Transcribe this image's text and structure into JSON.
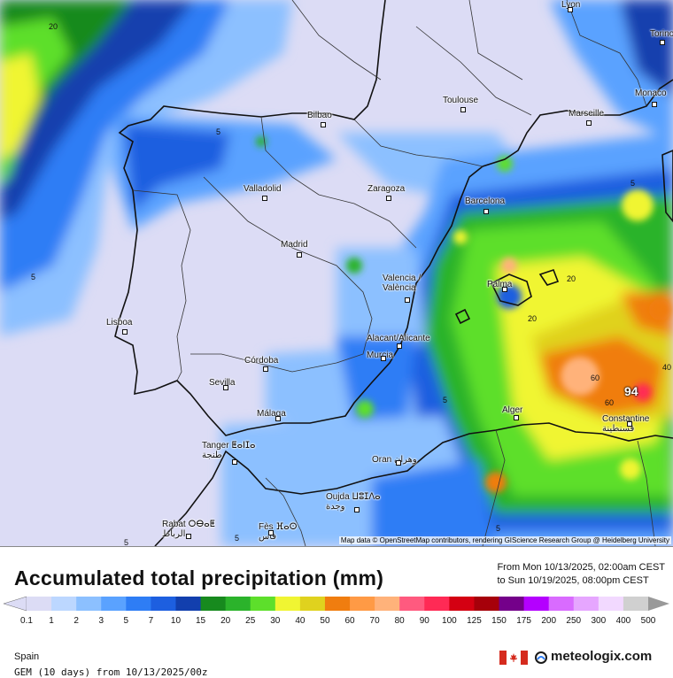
{
  "map": {
    "attribution": "Map data © OpenStreetMap contributors, rendering GIScience Research Group @ Heidelberg University",
    "max_value_label": "94",
    "contour_labels": [
      "20",
      "5",
      "5",
      "5",
      "20",
      "20",
      "5",
      "40",
      "60",
      "60",
      "5",
      "5",
      "5"
    ],
    "cities": [
      {
        "name": "Lyon"
      },
      {
        "name": "Torino"
      },
      {
        "name": "Monaco"
      },
      {
        "name": "Bilbao"
      },
      {
        "name": "Toulouse"
      },
      {
        "name": "Marseille"
      },
      {
        "name": "Valladolid"
      },
      {
        "name": "Zaragoza"
      },
      {
        "name": "Barcelona"
      },
      {
        "name": "Madrid"
      },
      {
        "name": "Valencia /\nValència"
      },
      {
        "name": "Palma"
      },
      {
        "name": "Lisboa"
      },
      {
        "name": "Alacant/Alicante"
      },
      {
        "name": "Murcia"
      },
      {
        "name": "Córdoba"
      },
      {
        "name": "Sevilla"
      },
      {
        "name": "Málaga"
      },
      {
        "name": "Alger"
      },
      {
        "name": "Constantine\nقسنطينة"
      },
      {
        "name": "Tanger ⵟⴰⵏⵊⴰ\nطنجة"
      },
      {
        "name": "Oran وهران"
      },
      {
        "name": "Oujda ⵡⵓⵊⴷⴰ\nوجدة"
      },
      {
        "name": "Rabat ⵔⴱⴰⵟ\nالرباط"
      },
      {
        "name": "Fès ⴼⴰⵙ\nفاس"
      }
    ]
  },
  "legend": {
    "title": "Accumulated total precipitation (mm)",
    "period_line1": "From Mon 10/13/2025, 02:00am CEST",
    "period_line2": "to Sun 10/19/2025, 08:00pm CEST",
    "ticks": [
      "0.1",
      "1",
      "2",
      "3",
      "5",
      "7",
      "10",
      "15",
      "20",
      "25",
      "30",
      "40",
      "50",
      "60",
      "70",
      "80",
      "90",
      "100",
      "125",
      "150",
      "175",
      "200",
      "250",
      "300",
      "400",
      "500"
    ],
    "colors": [
      "#dcdcf5",
      "#bcd7ff",
      "#8cc0ff",
      "#5aa2ff",
      "#2e7df5",
      "#1d5fe0",
      "#123fae",
      "#178a1e",
      "#2bb32b",
      "#5ddf2b",
      "#f0f532",
      "#e0d21e",
      "#f07d0f",
      "#ff9a45",
      "#ffb27a",
      "#ff5a7f",
      "#ff2a55",
      "#d40012",
      "#a6000a",
      "#74008a",
      "#b400ff",
      "#d96bff",
      "#e6a6ff",
      "#f2d9ff",
      "#d0d0d0"
    ],
    "region": "Spain",
    "model": "GEM (10 days) from 10/13/2025/00z",
    "brand": "meteologix.com"
  }
}
